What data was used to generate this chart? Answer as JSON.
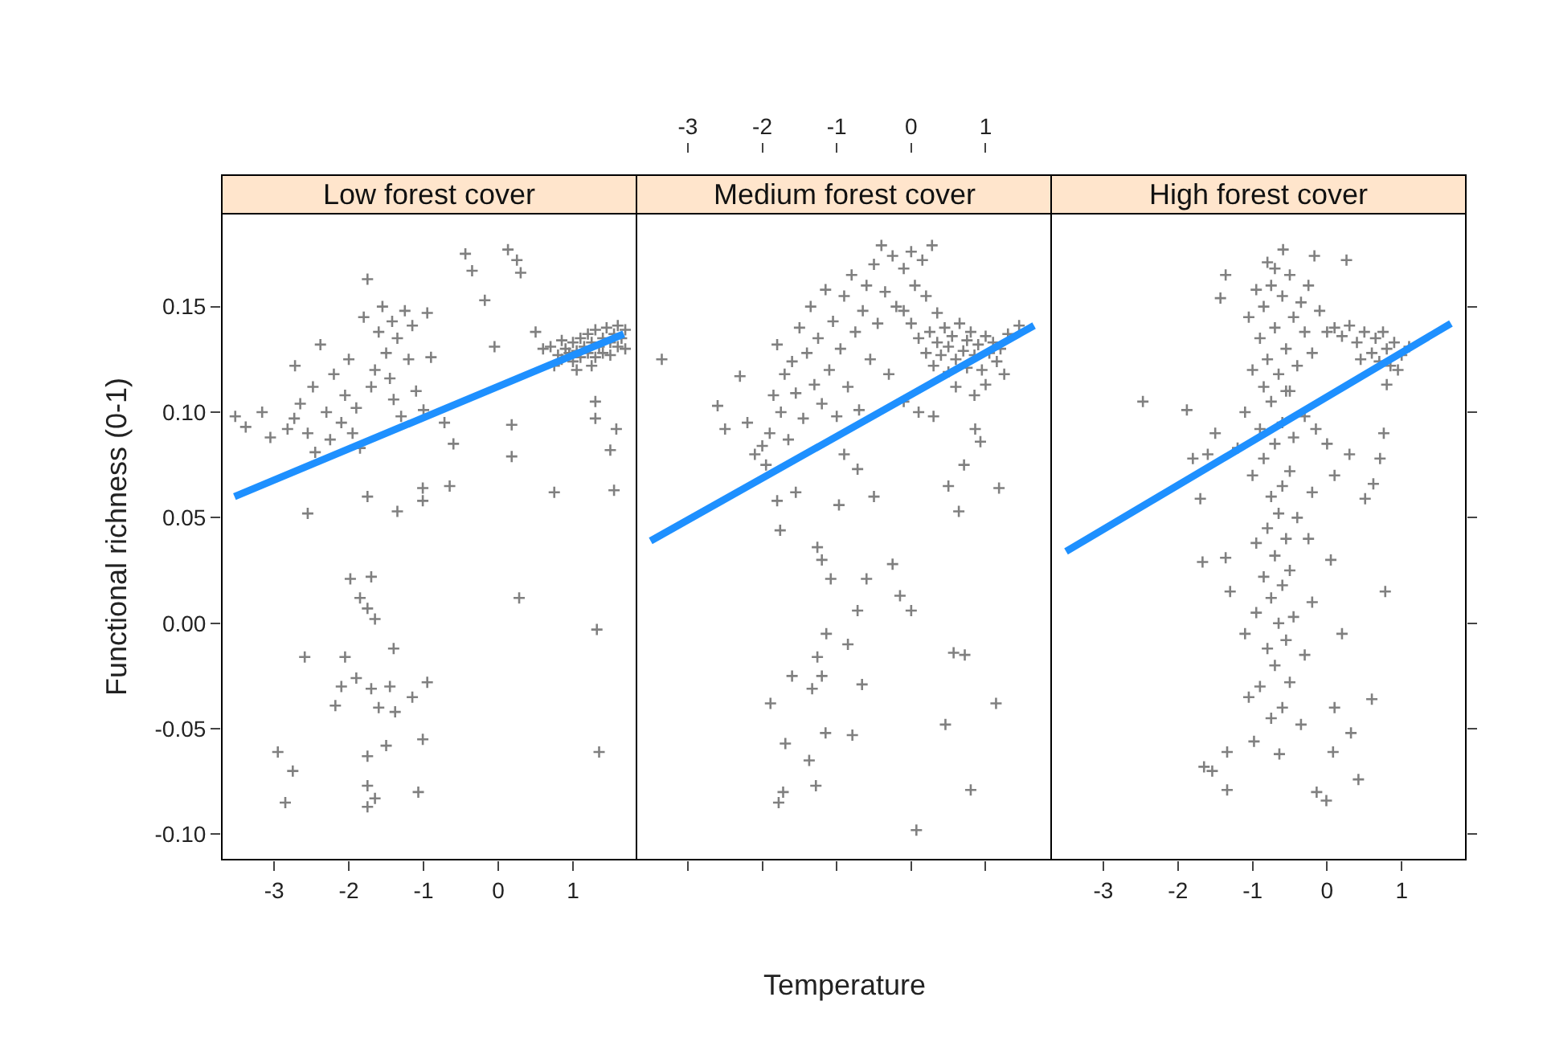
{
  "chart_data": [
    {
      "type": "scatter",
      "title": "Low forest cover",
      "ylabel": "Functional richness (0-1)",
      "xlim": [
        -3.7,
        1.85
      ],
      "xticks": [
        -3,
        -2,
        -1,
        0,
        1
      ],
      "ylim": [
        -0.112,
        0.194
      ],
      "yticks": [
        {
          "value": -0.1,
          "label": "-0.10"
        },
        {
          "value": -0.05,
          "label": "-0.05"
        },
        {
          "value": 0,
          "label": "0.00"
        },
        {
          "value": 0.05,
          "label": "0.05"
        },
        {
          "value": 0.1,
          "label": "0.10"
        },
        {
          "value": 0.15,
          "label": "0.15"
        }
      ],
      "marker": "cross",
      "series": [
        {
          "color": "#808080",
          "x": [
            0.75,
            0.8,
            0.85,
            0.9,
            0.95,
            1.0,
            1.0,
            1.05,
            1.1,
            1.1,
            1.15,
            1.2,
            1.2,
            1.25,
            1.3,
            1.3,
            1.35,
            1.4,
            1.4,
            1.45,
            1.5,
            1.5,
            1.55,
            1.6,
            1.6,
            1.65,
            1.7,
            1.7,
            0.6,
            0.7,
            0.85,
            1.05,
            1.25,
            -3.52,
            -3.38,
            -3.16,
            -3.05,
            -2.82,
            -2.73,
            -2.72,
            -2.65,
            -2.55,
            -2.48,
            -2.38,
            -2.3,
            -2.25,
            -2.2,
            -2.1,
            -2.05,
            -2.0,
            -1.95,
            -1.9,
            -1.85,
            -1.8,
            -1.75,
            -1.7,
            -1.65,
            -1.6,
            -1.55,
            -1.5,
            -1.45,
            -1.42,
            -1.4,
            -1.35,
            -1.3,
            -1.25,
            -1.2,
            -1.15,
            -1.1,
            -1.01,
            -1.0,
            -0.95,
            -0.9,
            -0.72,
            -0.65,
            -0.6,
            -0.44,
            -0.35,
            -0.18,
            -0.05,
            0.13,
            0.25,
            0.3,
            0.18,
            0.18,
            0.28,
            0.5,
            0.75,
            1.3,
            1.3,
            1.58,
            1.5,
            1.55,
            1.32,
            1.35,
            -2.45,
            -2.55,
            -1.75,
            -1.35,
            -1.01,
            -1.98,
            -1.7,
            -1.85,
            -1.75,
            -1.65,
            -1.4,
            -2.59,
            -2.05,
            -1.9,
            -2.1,
            -2.18,
            -1.7,
            -1.6,
            -1.45,
            -1.38,
            -1.15,
            -0.95,
            -1.01,
            -2.95,
            -2.75,
            -1.75,
            -1.5,
            -1.75,
            -1.65,
            -2.85,
            -1.75,
            -1.07
          ],
          "values": [
            0.122,
            0.127,
            0.125,
            0.13,
            0.128,
            0.124,
            0.133,
            0.129,
            0.126,
            0.135,
            0.131,
            0.128,
            0.137,
            0.133,
            0.126,
            0.139,
            0.131,
            0.135,
            0.128,
            0.14,
            0.133,
            0.127,
            0.137,
            0.131,
            0.141,
            0.135,
            0.139,
            0.13,
            0.13,
            0.131,
            0.134,
            0.12,
            0.122,
            0.098,
            0.093,
            0.1,
            0.088,
            0.092,
            0.097,
            0.122,
            0.104,
            0.09,
            0.112,
            0.132,
            0.1,
            0.087,
            0.118,
            0.095,
            0.108,
            0.125,
            0.09,
            0.102,
            0.083,
            0.145,
            0.163,
            0.112,
            0.12,
            0.138,
            0.15,
            0.128,
            0.116,
            0.143,
            0.106,
            0.135,
            0.098,
            0.148,
            0.125,
            0.141,
            0.11,
            0.064,
            0.101,
            0.147,
            0.126,
            0.095,
            0.065,
            0.085,
            0.175,
            0.167,
            0.153,
            0.131,
            0.177,
            0.172,
            0.166,
            0.079,
            0.094,
            0.012,
            0.138,
            0.062,
            0.097,
            0.105,
            0.092,
            0.082,
            0.063,
            -0.003,
            -0.061,
            0.081,
            0.052,
            0.06,
            0.053,
            0.058,
            0.021,
            0.022,
            0.012,
            0.007,
            0.002,
            -0.012,
            -0.016,
            -0.016,
            -0.026,
            -0.03,
            -0.039,
            -0.031,
            -0.04,
            -0.03,
            -0.042,
            -0.035,
            -0.028,
            -0.055,
            -0.061,
            -0.07,
            -0.063,
            -0.058,
            -0.077,
            -0.083,
            -0.085,
            -0.087,
            -0.08
          ]
        },
        {
          "type": "line",
          "color": "#1e90ff",
          "marker": "none",
          "line_style": "solid",
          "x": [
            -3.53,
            1.68
          ],
          "values": [
            0.06,
            0.137
          ]
        }
      ]
    },
    {
      "type": "scatter",
      "title": "Medium forest cover",
      "xlabel": "Temperature",
      "xlim": [
        -3.69,
        1.88
      ],
      "xticks": [
        -3,
        -2,
        -1,
        0,
        1
      ],
      "ylim": [
        -0.112,
        0.194
      ],
      "tick_labels": "x",
      "marker": "cross",
      "series": [
        {
          "color": "#808080",
          "x": [
            0.1,
            0.2,
            0.25,
            0.3,
            0.35,
            0.4,
            0.45,
            0.5,
            0.5,
            0.55,
            0.6,
            0.65,
            0.7,
            0.75,
            0.75,
            0.8,
            0.85,
            0.9,
            0.95,
            1.0,
            1.05,
            1.1,
            1.15,
            1.2,
            1.25,
            0.6,
            0.85,
            1.0,
            1.3,
            1.45,
            0.0,
            -0.1,
            -3.35,
            -2.6,
            -2.5,
            -2.3,
            -2.2,
            -2.1,
            -2.0,
            -1.95,
            -1.9,
            -1.85,
            -1.8,
            -1.75,
            -1.7,
            -1.65,
            -1.6,
            -1.55,
            -1.5,
            -1.45,
            -1.4,
            -1.35,
            -1.3,
            -1.25,
            -1.2,
            -1.15,
            -1.1,
            -1.05,
            -1.0,
            -0.95,
            -0.9,
            -0.85,
            -0.8,
            -0.75,
            -0.7,
            -0.65,
            -0.6,
            -0.55,
            -0.5,
            -0.45,
            -0.4,
            -0.35,
            -0.3,
            -0.25,
            -0.2,
            -0.1,
            0.0,
            0.05,
            0.15,
            0.28,
            0.2,
            0.35,
            -0.1,
            0.1,
            0.3,
            -1.8,
            -1.76,
            -1.55,
            -1.26,
            -1.08,
            -1.2,
            -0.97,
            -0.72,
            -0.9,
            -0.5,
            -0.6,
            -0.25,
            -0.15,
            -0.72,
            0.0,
            -1.14,
            -1.26,
            -1.2,
            -1.33,
            -1.6,
            -1.89,
            -1.37,
            -1.28,
            -1.69,
            -1.78,
            -1.72,
            -1.15,
            -0.79,
            -0.66,
            -0.85,
            0.07,
            0.46,
            0.57,
            0.72,
            1.14,
            0.8,
            0.5,
            0.64,
            1.18,
            0.71,
            0.86,
            0.93
          ],
          "values": [
            0.135,
            0.128,
            0.138,
            0.122,
            0.133,
            0.127,
            0.14,
            0.119,
            0.131,
            0.136,
            0.125,
            0.142,
            0.129,
            0.121,
            0.134,
            0.138,
            0.127,
            0.132,
            0.12,
            0.136,
            0.128,
            0.133,
            0.124,
            0.13,
            0.118,
            0.112,
            0.108,
            0.113,
            0.137,
            0.141,
            0.142,
            0.148,
            0.125,
            0.103,
            0.092,
            0.117,
            0.095,
            0.08,
            0.084,
            0.075,
            0.09,
            0.108,
            0.132,
            0.1,
            0.118,
            0.087,
            0.124,
            0.109,
            0.14,
            0.097,
            0.128,
            0.15,
            0.113,
            0.135,
            0.104,
            0.158,
            0.12,
            0.143,
            0.098,
            0.13,
            0.155,
            0.112,
            0.165,
            0.138,
            0.101,
            0.148,
            0.16,
            0.125,
            0.17,
            0.142,
            0.179,
            0.157,
            0.118,
            0.174,
            0.15,
            0.168,
            0.176,
            0.16,
            0.172,
            0.179,
            0.155,
            0.147,
            0.105,
            0.1,
            0.098,
            0.058,
            0.044,
            0.062,
            0.036,
            0.021,
            0.03,
            0.056,
            0.073,
            0.08,
            0.06,
            0.021,
            0.028,
            0.013,
            0.006,
            0.006,
            -0.005,
            -0.016,
            -0.025,
            -0.031,
            -0.025,
            -0.038,
            -0.065,
            -0.077,
            -0.057,
            -0.085,
            -0.08,
            -0.052,
            -0.053,
            -0.029,
            -0.01,
            -0.098,
            -0.048,
            -0.014,
            -0.015,
            -0.038,
            -0.079,
            0.065,
            0.053,
            0.064,
            0.075,
            0.092,
            0.086
          ]
        },
        {
          "type": "line",
          "color": "#1e90ff",
          "marker": "none",
          "line_style": "solid",
          "x": [
            -3.5,
            1.65
          ],
          "values": [
            0.039,
            0.141
          ]
        }
      ]
    },
    {
      "type": "scatter",
      "title": "High forest cover",
      "xlim": [
        -3.7,
        1.86
      ],
      "xticks": [
        -3,
        -2,
        -1,
        0,
        1
      ],
      "ylim": [
        -0.112,
        0.194
      ],
      "yticks": [
        {
          "value": -0.1,
          "label": null
        },
        {
          "value": -0.05,
          "label": null
        },
        {
          "value": 0,
          "label": null
        },
        {
          "value": 0.05,
          "label": null
        },
        {
          "value": 0.1,
          "label": null
        },
        {
          "value": 0.15,
          "label": null
        }
      ],
      "tick_labels": "x",
      "marker": "cross",
      "series": [
        {
          "color": "#808080",
          "x": [
            -2.47,
            -1.88,
            -1.7,
            -1.67,
            -1.36,
            -1.36,
            -1.43,
            -0.8,
            -0.59,
            -0.17,
            0.26,
            -1.65,
            -1.54,
            -1.34,
            -1.34,
            -0.98,
            -0.64,
            -0.14,
            -0.01,
            0.42,
            0.08,
            0.32,
            0.6,
            0.78,
            0.8,
            0.76,
            0.71,
            0.62,
            0.51,
            -0.75,
            -0.6,
            -0.9,
            -0.5,
            -0.7,
            -0.8,
            -0.55,
            -0.65,
            -0.95,
            -0.45,
            -0.75,
            -0.6,
            -0.85,
            -0.5,
            -0.7,
            -0.95,
            -0.55,
            -0.8,
            -0.65,
            -0.4,
            -0.75,
            -0.6,
            -1.0,
            -0.5,
            -0.85,
            -0.7,
            -1.2,
            -0.45,
            -0.9,
            -0.6,
            -1.1,
            -0.75,
            -0.5,
            -0.3,
            -0.15,
            0.0,
            0.3,
            -0.2,
            0.1,
            -0.25,
            0.05,
            -1.3,
            -1.1,
            -0.3,
            0.2,
            -1.05,
            -0.35,
            0.1,
            -0.2,
            -1.5,
            -1.6,
            -1.8,
            -1.0,
            -0.9,
            -0.85,
            -0.8,
            -0.75,
            -0.7,
            -0.65,
            -0.6,
            -0.55,
            -0.5,
            -0.45,
            -0.4,
            -0.35,
            -0.3,
            -0.25,
            -0.2,
            -0.1,
            0.0,
            -0.95,
            -0.7,
            -0.55,
            -1.05,
            -0.85,
            0.1,
            0.2,
            0.3,
            0.4,
            0.5,
            0.6,
            0.65,
            0.7,
            0.8,
            0.85,
            0.9,
            1.0,
            1.1,
            0.45,
            0.75,
            0.95
          ],
          "values": [
            0.105,
            0.101,
            0.059,
            0.029,
            0.031,
            0.165,
            0.154,
            0.171,
            0.177,
            0.174,
            0.172,
            -0.068,
            -0.07,
            -0.079,
            -0.061,
            -0.056,
            -0.062,
            -0.08,
            -0.084,
            -0.074,
            -0.061,
            -0.052,
            -0.036,
            0.015,
            0.113,
            0.09,
            0.078,
            0.066,
            0.059,
            -0.045,
            -0.04,
            -0.03,
            -0.028,
            -0.02,
            -0.012,
            -0.008,
            0.0,
            0.005,
            0.003,
            0.012,
            0.018,
            0.022,
            0.025,
            0.032,
            0.038,
            0.04,
            0.045,
            0.052,
            0.05,
            0.06,
            0.065,
            0.07,
            0.072,
            0.078,
            0.085,
            0.083,
            0.088,
            0.092,
            0.095,
            0.1,
            0.105,
            0.11,
            0.098,
            0.092,
            0.085,
            0.08,
            0.062,
            0.07,
            0.04,
            0.03,
            0.015,
            -0.005,
            -0.015,
            -0.005,
            -0.035,
            -0.048,
            -0.04,
            0.01,
            0.09,
            0.08,
            0.078,
            0.12,
            0.135,
            0.15,
            0.125,
            0.16,
            0.14,
            0.118,
            0.155,
            0.13,
            0.165,
            0.145,
            0.122,
            0.152,
            0.138,
            0.16,
            0.128,
            0.148,
            0.138,
            0.158,
            0.168,
            0.11,
            0.145,
            0.112,
            0.14,
            0.136,
            0.141,
            0.133,
            0.138,
            0.128,
            0.135,
            0.124,
            0.13,
            0.122,
            0.133,
            0.127,
            0.131,
            0.125,
            0.138,
            0.12
          ]
        },
        {
          "type": "line",
          "color": "#1e90ff",
          "marker": "none",
          "line_style": "solid",
          "x": [
            -3.5,
            1.66
          ],
          "values": [
            0.034,
            0.142
          ]
        }
      ]
    }
  ]
}
